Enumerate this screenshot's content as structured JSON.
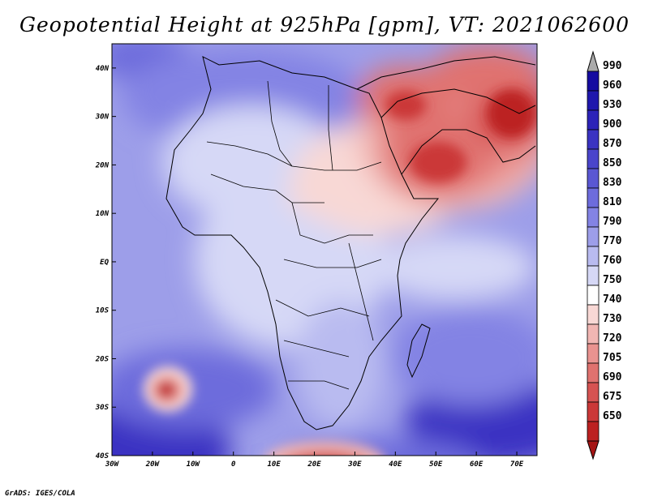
{
  "title": "Geopotential Height at 925hPa [gpm], VT: 2021062600",
  "credit": "GrADS: IGES/COLA",
  "map": {
    "projection": "lat-lon",
    "lon_range": [
      "30W",
      "75E"
    ],
    "lat_range": [
      "40S",
      "45N"
    ],
    "lon_ticks": [
      "30W",
      "20W",
      "10W",
      "0",
      "10E",
      "20E",
      "30E",
      "40E",
      "50E",
      "60E",
      "70E"
    ],
    "lat_ticks": [
      "40N",
      "30N",
      "20N",
      "10N",
      "EQ",
      "10S",
      "20S",
      "30S",
      "40S"
    ],
    "features": [
      "Arabian Peninsula heat low",
      "Middle East low",
      "Southwest Africa ridge",
      "South Atlantic cutoff low",
      "Southern Ocean low"
    ]
  },
  "colorbar": {
    "levels": [
      "990",
      "960",
      "930",
      "900",
      "870",
      "850",
      "830",
      "810",
      "790",
      "770",
      "760",
      "750",
      "740",
      "730",
      "720",
      "705",
      "690",
      "675",
      "650"
    ],
    "colors": [
      "#150ba0",
      "#1f17ad",
      "#2c23b8",
      "#3a33c2",
      "#4a45cb",
      "#5a57d3",
      "#6d6cdc",
      "#8383e4",
      "#9d9ee9",
      "#b9bbf0",
      "#d6d8f6",
      "#ffffff",
      "#f8d8d5",
      "#f1b6b3",
      "#e99390",
      "#e0726f",
      "#d65352",
      "#cb3838",
      "#bc2121",
      "#a51414"
    ]
  },
  "colors": {
    "low": "#a51414",
    "high": "#150ba0",
    "neutral": "#ffffff"
  }
}
